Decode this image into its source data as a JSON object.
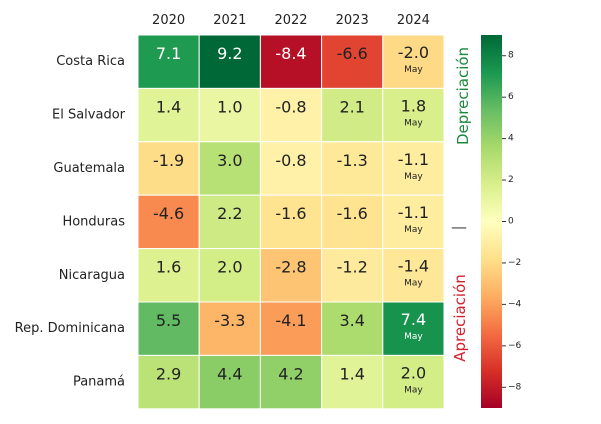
{
  "chart_data": {
    "type": "heatmap",
    "title": "",
    "xlabel": "",
    "ylabel": "",
    "columns": [
      "2020",
      "2021",
      "2022",
      "2023",
      "2024"
    ],
    "rows": [
      "Costa Rica",
      "El Salvador",
      "Guatemala",
      "Honduras",
      "Nicaragua",
      "Rep. Dominicana",
      "Panamá"
    ],
    "values": [
      [
        7.1,
        9.2,
        -8.4,
        -6.6,
        -2.0
      ],
      [
        1.4,
        1.0,
        -0.8,
        2.1,
        1.8
      ],
      [
        -1.9,
        3.0,
        -0.8,
        -1.3,
        -1.1
      ],
      [
        -4.6,
        2.2,
        -1.6,
        -1.6,
        -1.1
      ],
      [
        1.6,
        2.0,
        -2.8,
        -1.2,
        -1.4
      ],
      [
        5.5,
        -3.3,
        -4.1,
        3.4,
        7.4
      ],
      [
        2.9,
        4.4,
        4.2,
        1.4,
        2.0
      ]
    ],
    "cell_note": "May",
    "cell_note_column": "2024",
    "colorbar": {
      "colormap": "RdYlGn",
      "range": [
        -9,
        9
      ],
      "ticks": [
        8,
        6,
        4,
        2,
        0,
        -2,
        -4,
        -6,
        -8
      ]
    },
    "side_labels": {
      "top": "Depreciación",
      "separator": "—",
      "bottom": "Apreciación",
      "top_color": "#1a8a3a",
      "bottom_color": "#d4202c"
    }
  }
}
